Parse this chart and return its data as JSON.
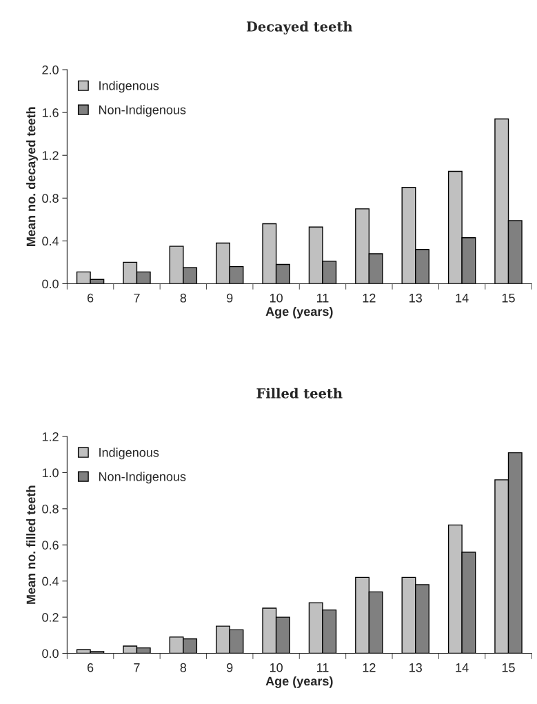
{
  "chart_data": [
    {
      "type": "bar",
      "title": "Decayed teeth",
      "xlabel": "Age (years)",
      "ylabel": "Mean no. decayed teeth",
      "categories": [
        "6",
        "7",
        "8",
        "9",
        "10",
        "11",
        "12",
        "13",
        "14",
        "15"
      ],
      "series": [
        {
          "name": "Indigenous",
          "color": "#c0c0c0",
          "values": [
            0.11,
            0.2,
            0.35,
            0.38,
            0.56,
            0.53,
            0.7,
            0.9,
            1.05,
            1.54
          ]
        },
        {
          "name": "Non-Indigenous",
          "color": "#808080",
          "values": [
            0.04,
            0.11,
            0.15,
            0.16,
            0.18,
            0.21,
            0.28,
            0.32,
            0.43,
            0.59
          ]
        }
      ],
      "ylim": [
        0.0,
        2.0
      ],
      "yticks": [
        {
          "value": 0,
          "label": "0.0"
        },
        0.4,
        0.8,
        1.2,
        1.6,
        {
          "value": 2,
          "label": "2.0"
        }
      ],
      "grid": false,
      "legend": "top left"
    },
    {
      "type": "bar",
      "title": "Filled teeth",
      "xlabel": "Age (years)",
      "ylabel": "Mean no. filled teeth",
      "categories": [
        "6",
        "7",
        "8",
        "9",
        "10",
        "11",
        "12",
        "13",
        "14",
        "15"
      ],
      "series": [
        {
          "name": "Indigenous",
          "color": "#c0c0c0",
          "values": [
            0.02,
            0.04,
            0.09,
            0.15,
            0.25,
            0.28,
            0.42,
            0.42,
            0.71,
            0.96
          ]
        },
        {
          "name": "Non-Indigenous",
          "color": "#808080",
          "values": [
            0.01,
            0.03,
            0.08,
            0.13,
            0.2,
            0.24,
            0.34,
            0.38,
            0.56,
            1.11
          ]
        }
      ],
      "ylim": [
        0.0,
        1.2
      ],
      "yticks": [
        {
          "value": 0,
          "label": "0.0"
        },
        0.2,
        0.4,
        0.6,
        0.8,
        {
          "value": 1,
          "label": "1.0"
        },
        1.2
      ],
      "grid": false,
      "legend": "top left"
    }
  ]
}
